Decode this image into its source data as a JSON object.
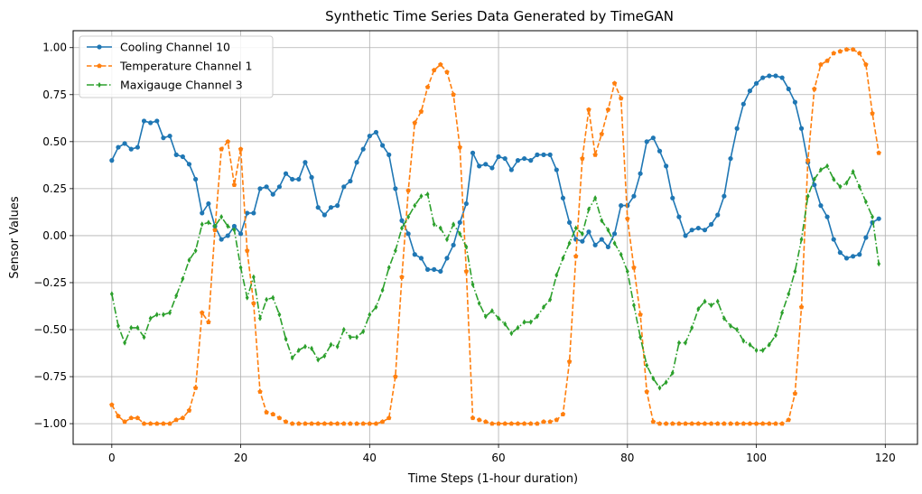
{
  "chart_data": {
    "type": "line",
    "title": "Synthetic Time Series Data Generated by TimeGAN",
    "xlabel": "Time Steps (1-hour duration)",
    "ylabel": "Sensor Values",
    "xlim": [
      -6,
      125
    ],
    "ylim": [
      -1.11,
      1.09
    ],
    "xticks": [
      0,
      20,
      40,
      60,
      80,
      100,
      120
    ],
    "yticks": [
      -1.0,
      -0.75,
      -0.5,
      -0.25,
      0.0,
      0.25,
      0.5,
      0.75,
      1.0
    ],
    "ytick_labels": [
      "−1.00",
      "−0.75",
      "−0.50",
      "−0.25",
      "0.00",
      "0.25",
      "0.50",
      "0.75",
      "1.00"
    ],
    "grid": true,
    "legend_position": "upper-left",
    "series": [
      {
        "name": "Cooling Channel 10",
        "color": "#1f77b4",
        "linestyle": "solid",
        "marker": "circle",
        "values": [
          0.4,
          0.47,
          0.49,
          0.46,
          0.47,
          0.61,
          0.6,
          0.61,
          0.52,
          0.53,
          0.43,
          0.42,
          0.38,
          0.3,
          0.12,
          0.17,
          0.05,
          -0.02,
          0.0,
          0.05,
          0.01,
          0.12,
          0.12,
          0.25,
          0.26,
          0.22,
          0.26,
          0.33,
          0.3,
          0.3,
          0.39,
          0.31,
          0.15,
          0.11,
          0.15,
          0.16,
          0.26,
          0.29,
          0.39,
          0.46,
          0.53,
          0.55,
          0.48,
          0.43,
          0.25,
          0.08,
          0.01,
          -0.1,
          -0.12,
          -0.18,
          -0.18,
          -0.19,
          -0.12,
          -0.05,
          0.07,
          0.17,
          0.44,
          0.37,
          0.38,
          0.36,
          0.42,
          0.41,
          0.35,
          0.4,
          0.41,
          0.4,
          0.43,
          0.43,
          0.43,
          0.35,
          0.2,
          0.07,
          -0.02,
          -0.03,
          0.02,
          -0.05,
          -0.02,
          -0.06,
          0.01,
          0.16,
          0.16,
          0.21,
          0.33,
          0.5,
          0.52,
          0.45,
          0.37,
          0.2,
          0.1,
          0.0,
          0.03,
          0.04,
          0.03,
          0.06,
          0.11,
          0.21,
          0.41,
          0.57,
          0.7,
          0.77,
          0.81,
          0.84,
          0.85,
          0.85,
          0.84,
          0.78,
          0.71,
          0.57,
          0.39,
          0.27,
          0.16,
          0.1,
          -0.02,
          -0.09,
          -0.12,
          -0.11,
          -0.1,
          -0.01,
          0.07,
          0.09
        ]
      },
      {
        "name": "Temperature Channel 1",
        "color": "#ff7f0e",
        "linestyle": "dashed",
        "marker": "pentagon",
        "values": [
          -0.9,
          -0.96,
          -0.99,
          -0.97,
          -0.97,
          -1.0,
          -1.0,
          -1.0,
          -1.0,
          -1.0,
          -0.98,
          -0.97,
          -0.93,
          -0.81,
          -0.41,
          -0.46,
          0.03,
          0.46,
          0.5,
          0.27,
          0.46,
          -0.08,
          -0.36,
          -0.83,
          -0.94,
          -0.95,
          -0.97,
          -0.99,
          -1.0,
          -1.0,
          -1.0,
          -1.0,
          -1.0,
          -1.0,
          -1.0,
          -1.0,
          -1.0,
          -1.0,
          -1.0,
          -1.0,
          -1.0,
          -1.0,
          -0.99,
          -0.97,
          -0.75,
          -0.22,
          0.24,
          0.6,
          0.66,
          0.79,
          0.88,
          0.91,
          0.87,
          0.75,
          0.47,
          -0.19,
          -0.97,
          -0.98,
          -0.99,
          -1.0,
          -1.0,
          -1.0,
          -1.0,
          -1.0,
          -1.0,
          -1.0,
          -1.0,
          -0.99,
          -0.99,
          -0.98,
          -0.95,
          -0.67,
          -0.11,
          0.41,
          0.67,
          0.43,
          0.54,
          0.67,
          0.81,
          0.73,
          0.09,
          -0.17,
          -0.42,
          -0.83,
          -0.99,
          -1.0,
          -1.0,
          -1.0,
          -1.0,
          -1.0,
          -1.0,
          -1.0,
          -1.0,
          -1.0,
          -1.0,
          -1.0,
          -1.0,
          -1.0,
          -1.0,
          -1.0,
          -1.0,
          -1.0,
          -1.0,
          -1.0,
          -1.0,
          -0.98,
          -0.84,
          -0.38,
          0.4,
          0.78,
          0.91,
          0.93,
          0.97,
          0.98,
          0.99,
          0.99,
          0.97,
          0.91,
          0.65,
          0.44
        ]
      },
      {
        "name": "Maxigauge Channel 3",
        "color": "#2ca02c",
        "linestyle": "dashdot",
        "marker": "diamond",
        "values": [
          -0.31,
          -0.48,
          -0.57,
          -0.49,
          -0.49,
          -0.54,
          -0.44,
          -0.42,
          -0.42,
          -0.41,
          -0.32,
          -0.23,
          -0.13,
          -0.08,
          0.06,
          0.07,
          0.05,
          0.1,
          0.05,
          0.03,
          -0.17,
          -0.33,
          -0.22,
          -0.44,
          -0.34,
          -0.33,
          -0.42,
          -0.55,
          -0.65,
          -0.61,
          -0.59,
          -0.6,
          -0.66,
          -0.64,
          -0.58,
          -0.59,
          -0.5,
          -0.54,
          -0.54,
          -0.51,
          -0.42,
          -0.38,
          -0.29,
          -0.17,
          -0.08,
          0.04,
          0.1,
          0.16,
          0.21,
          0.22,
          0.06,
          0.04,
          -0.02,
          0.06,
          0.01,
          -0.06,
          -0.26,
          -0.36,
          -0.43,
          -0.4,
          -0.44,
          -0.47,
          -0.52,
          -0.49,
          -0.46,
          -0.46,
          -0.43,
          -0.38,
          -0.34,
          -0.21,
          -0.12,
          -0.04,
          0.04,
          0.01,
          0.14,
          0.2,
          0.08,
          0.03,
          -0.04,
          -0.1,
          -0.19,
          -0.37,
          -0.54,
          -0.69,
          -0.76,
          -0.81,
          -0.78,
          -0.73,
          -0.57,
          -0.57,
          -0.49,
          -0.39,
          -0.35,
          -0.37,
          -0.35,
          -0.44,
          -0.48,
          -0.5,
          -0.56,
          -0.58,
          -0.61,
          -0.61,
          -0.58,
          -0.53,
          -0.41,
          -0.31,
          -0.19,
          -0.02,
          0.21,
          0.3,
          0.35,
          0.37,
          0.3,
          0.26,
          0.28,
          0.34,
          0.26,
          0.18,
          0.1,
          -0.15
        ]
      }
    ]
  }
}
